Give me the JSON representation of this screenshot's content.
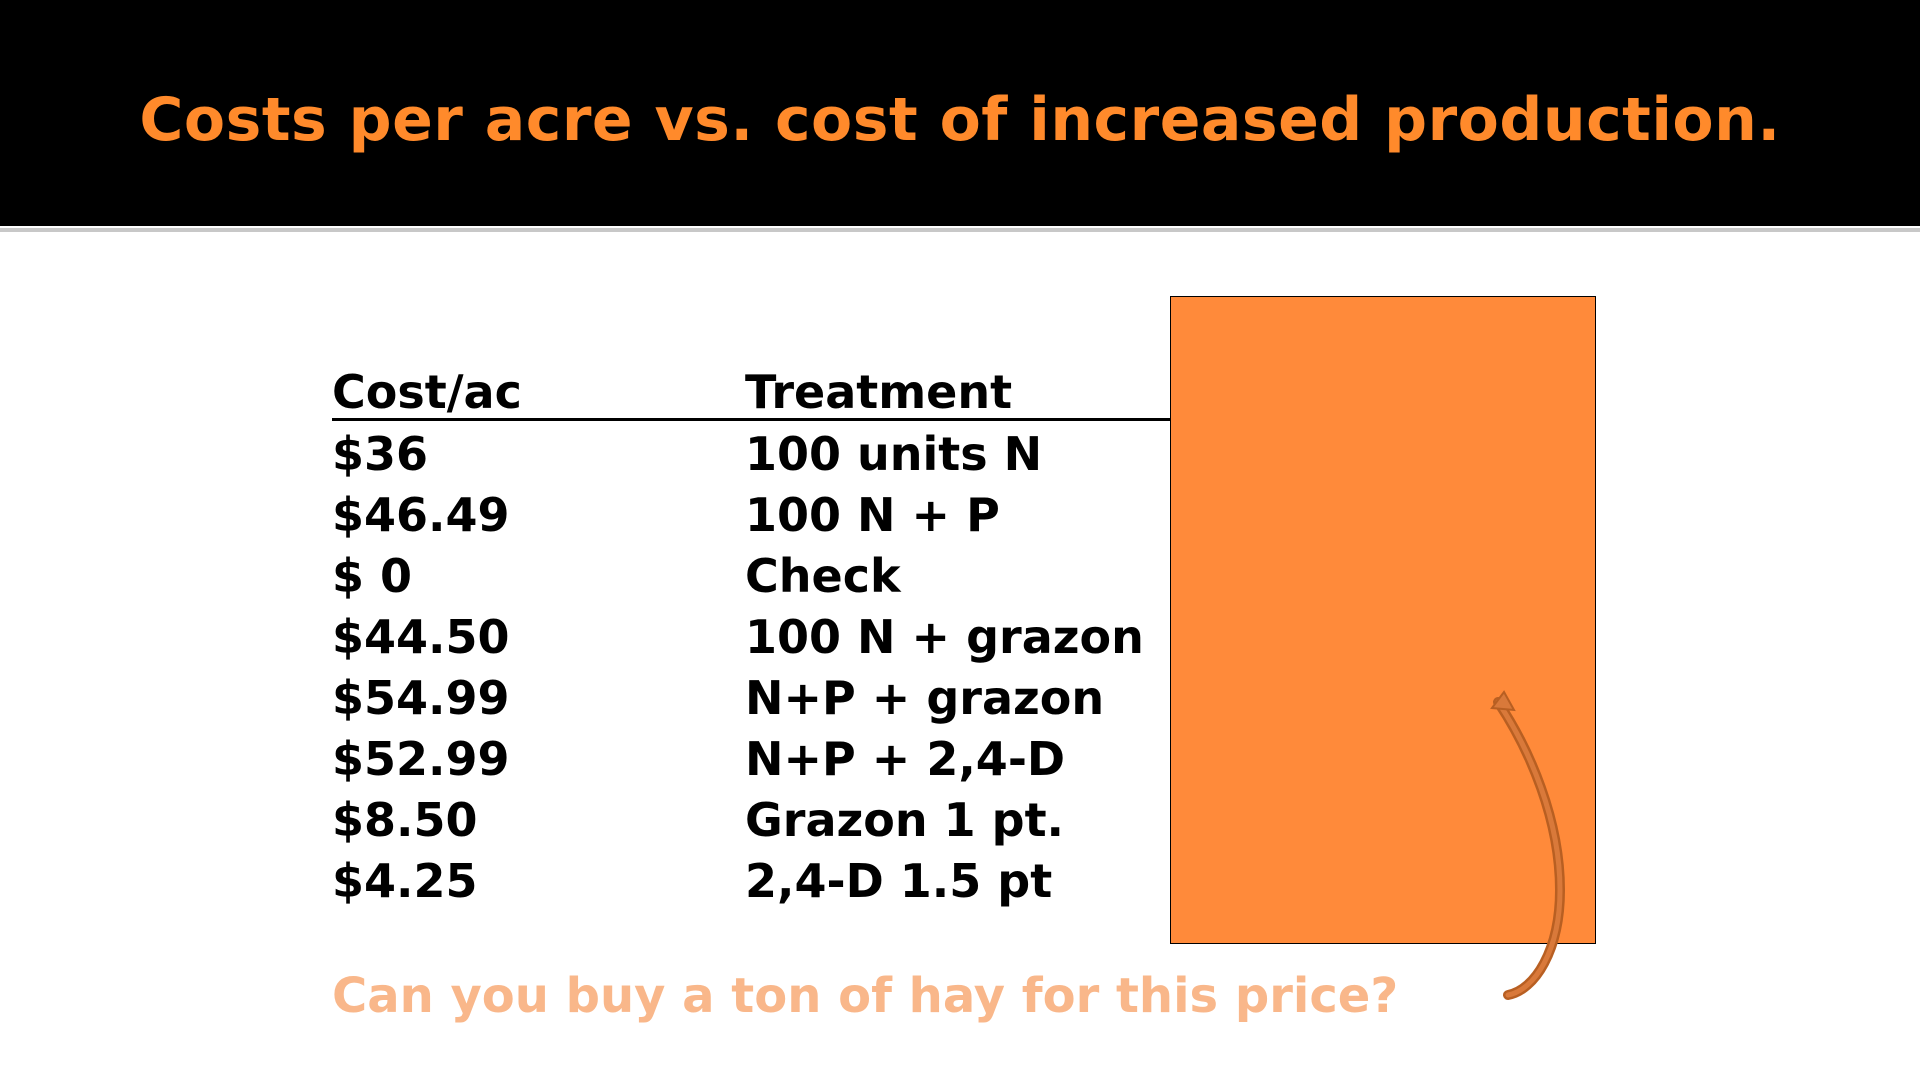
{
  "slide": {
    "title": "Costs per acre vs. cost of increased production.",
    "table": {
      "headers": {
        "cost": "Cost/ac",
        "treatment": "Treatment"
      },
      "rows": [
        {
          "cost": "$36",
          "treatment": "100 units N"
        },
        {
          "cost": "$46.49",
          "treatment": "100 N + P"
        },
        {
          "cost": "$ 0",
          "treatment": "Check"
        },
        {
          "cost": "$44.50",
          "treatment": "100 N + grazon"
        },
        {
          "cost": "$54.99",
          "treatment": "N+P + grazon"
        },
        {
          "cost": "$52.99",
          "treatment": "N+P + 2,4-D"
        },
        {
          "cost": "$8.50",
          "treatment": "Grazon 1 pt."
        },
        {
          "cost": "$4.25",
          "treatment": "2,4-D 1.5 pt"
        }
      ]
    },
    "question": "Can you buy a ton of hay for this price?",
    "colors": {
      "title": "#ff8a2b",
      "title_bar": "#000000",
      "box": "#ff8a3a",
      "arrow": "#b85f22",
      "question": "#f9b78a"
    },
    "icons": [
      "curved-arrow-icon"
    ]
  }
}
